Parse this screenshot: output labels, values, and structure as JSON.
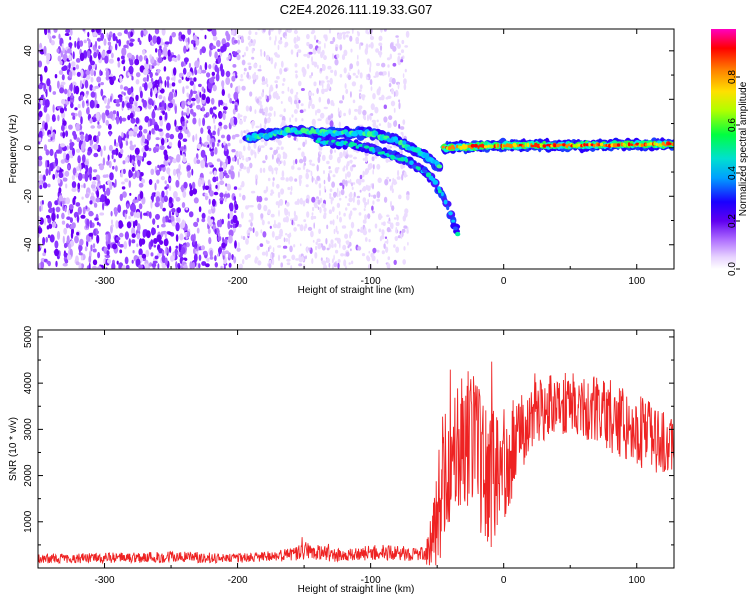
{
  "title": "C2E4.2026.111.19.33.G07",
  "chart_data": [
    {
      "type": "heatmap",
      "title": "C2E4.2026.111.19.33.G07",
      "xlabel": "Height of straight line (km)",
      "ylabel": "Frequency (Hz)",
      "xlim": [
        -350,
        128
      ],
      "ylim": [
        -50,
        49
      ],
      "x_ticks": [
        -300,
        -200,
        -100,
        0,
        100
      ],
      "y_ticks": [
        -40,
        -20,
        0,
        20,
        40
      ],
      "colorbar": {
        "label": "Normalized spectral amplitude",
        "range": [
          0.0,
          1.0
        ],
        "ticks": [
          0.0,
          0.2,
          0.4,
          0.6,
          0.8
        ],
        "colormap": [
          "#ffffff",
          "#d8b4ff",
          "#8a2be2",
          "#1a00ff",
          "#00c8ff",
          "#00ff66",
          "#ffff00",
          "#ff8000",
          "#ff0000",
          "#ff00b0"
        ]
      },
      "features": [
        {
          "name": "background noise",
          "x_range": [
            -350,
            -200
          ],
          "frequency_range": [
            -50,
            49
          ],
          "amplitude": "0.1-0.3"
        },
        {
          "name": "fading noise",
          "x_range": [
            -200,
            -72
          ],
          "frequency_range": [
            -50,
            49
          ],
          "amplitude": "0.05-0.15"
        },
        {
          "name": "upper trace",
          "points": [
            [
              -192,
              4
            ],
            [
              -160,
              7
            ],
            [
              -130,
              6
            ],
            [
              -100,
              6
            ],
            [
              -80,
              3
            ],
            [
              -60,
              -3
            ],
            [
              -48,
              -8
            ]
          ],
          "amplitude": "0.3-0.6"
        },
        {
          "name": "lower trace",
          "points": [
            [
              -140,
              3
            ],
            [
              -110,
              1
            ],
            [
              -90,
              -2
            ],
            [
              -70,
              -6
            ],
            [
              -55,
              -12
            ],
            [
              -45,
              -20
            ],
            [
              -35,
              -35
            ]
          ],
          "amplitude": "0.2-0.5"
        },
        {
          "name": "strong carrier",
          "points": [
            [
              -45,
              0
            ],
            [
              0,
              1
            ],
            [
              50,
              1
            ],
            [
              128,
              1.5
            ]
          ],
          "amplitude": "0.8-1.0"
        }
      ]
    },
    {
      "type": "line",
      "xlabel": "Height of straight line (km)",
      "ylabel": "SNR (10 * v/v)",
      "xlim": [
        -350,
        128
      ],
      "ylim": [
        0,
        5150
      ],
      "x_ticks": [
        -300,
        -200,
        -100,
        0,
        100
      ],
      "y_ticks": [
        1000,
        2000,
        3000,
        4000,
        5000
      ],
      "color": "#ee2222",
      "series": [
        {
          "name": "SNR",
          "envelope_x": [
            -350,
            -300,
            -250,
            -200,
            -180,
            -160,
            -150,
            -140,
            -120,
            -100,
            -80,
            -60,
            -55,
            -50,
            -45,
            -40,
            -30,
            -20,
            -10,
            0,
            20,
            40,
            60,
            80,
            100,
            120,
            128
          ],
          "envelope_mean": [
            200,
            220,
            240,
            210,
            240,
            290,
            380,
            330,
            260,
            330,
            320,
            300,
            500,
            1100,
            2000,
            2700,
            2900,
            2500,
            1900,
            2300,
            3300,
            3600,
            3500,
            3300,
            3000,
            2700,
            2600
          ],
          "envelope_spread": [
            100,
            110,
            130,
            100,
            110,
            150,
            200,
            180,
            130,
            170,
            160,
            150,
            600,
            1200,
            1500,
            1700,
            1600,
            1600,
            1500,
            1300,
            700,
            700,
            700,
            800,
            800,
            700,
            600
          ]
        }
      ]
    }
  ]
}
